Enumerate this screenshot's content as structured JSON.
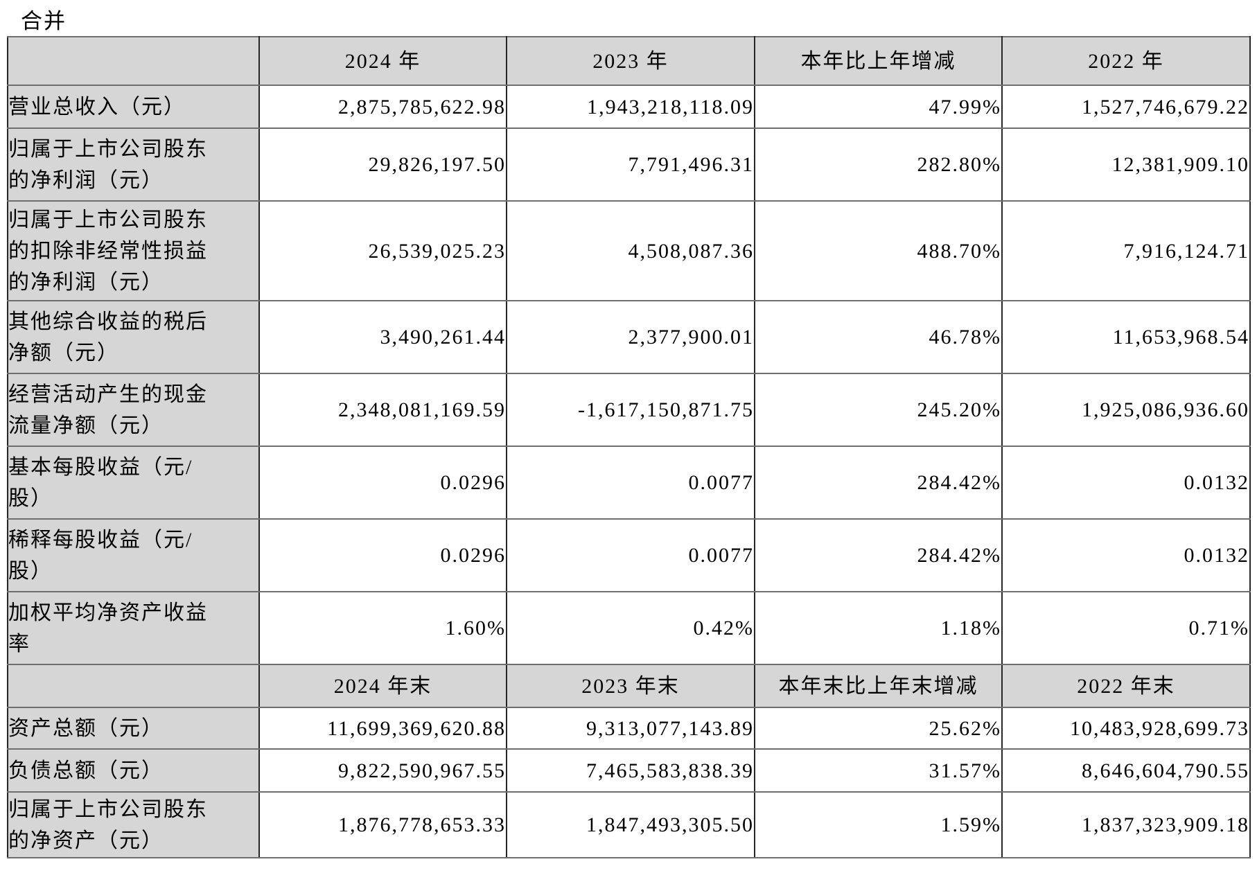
{
  "title": "合并",
  "colors": {
    "header_bg": "#d6d6d6",
    "label_bg": "#d6d6d6",
    "vertical_border": "#262626",
    "horizontal_border": "#6e6e6e",
    "text": "#000000"
  },
  "table": {
    "sections": [
      {
        "header": [
          "",
          "2024 年",
          "2023 年",
          "本年比上年增减",
          "2022 年"
        ],
        "rows": [
          {
            "label": "营业总收入（元）",
            "values": [
              "2,875,785,622.98",
              "1,943,218,118.09",
              "47.99%",
              "1,527,746,679.22"
            ]
          },
          {
            "label": "归属于上市公司股东\n的净利润（元）",
            "values": [
              "29,826,197.50",
              "7,791,496.31",
              "282.80%",
              "12,381,909.10"
            ]
          },
          {
            "label": "归属于上市公司股东\n的扣除非经常性损益\n的净利润（元）",
            "values": [
              "26,539,025.23",
              "4,508,087.36",
              "488.70%",
              "7,916,124.71"
            ]
          },
          {
            "label": "其他综合收益的税后\n净额（元）",
            "values": [
              "3,490,261.44",
              "2,377,900.01",
              "46.78%",
              "11,653,968.54"
            ]
          },
          {
            "label": "经营活动产生的现金\n流量净额（元）",
            "values": [
              "2,348,081,169.59",
              "-1,617,150,871.75",
              "245.20%",
              "1,925,086,936.60"
            ]
          },
          {
            "label": "基本每股收益（元/\n股）",
            "values": [
              "0.0296",
              "0.0077",
              "284.42%",
              "0.0132"
            ]
          },
          {
            "label": "稀释每股收益（元/\n股）",
            "values": [
              "0.0296",
              "0.0077",
              "284.42%",
              "0.0132"
            ]
          },
          {
            "label": "加权平均净资产收益\n率",
            "values": [
              "1.60%",
              "0.42%",
              "1.18%",
              "0.71%"
            ]
          }
        ]
      },
      {
        "header": [
          "",
          "2024 年末",
          "2023 年末",
          "本年末比上年末增减",
          "2022 年末"
        ],
        "rows": [
          {
            "label": "资产总额（元）",
            "values": [
              "11,699,369,620.88",
              "9,313,077,143.89",
              "25.62%",
              "10,483,928,699.73"
            ]
          },
          {
            "label": "负债总额（元）",
            "values": [
              "9,822,590,967.55",
              "7,465,583,838.39",
              "31.57%",
              "8,646,604,790.55"
            ]
          },
          {
            "label": "归属于上市公司股东\n的净资产（元）",
            "values": [
              "1,876,778,653.33",
              "1,847,493,305.50",
              "1.59%",
              "1,837,323,909.18"
            ]
          }
        ]
      }
    ]
  }
}
